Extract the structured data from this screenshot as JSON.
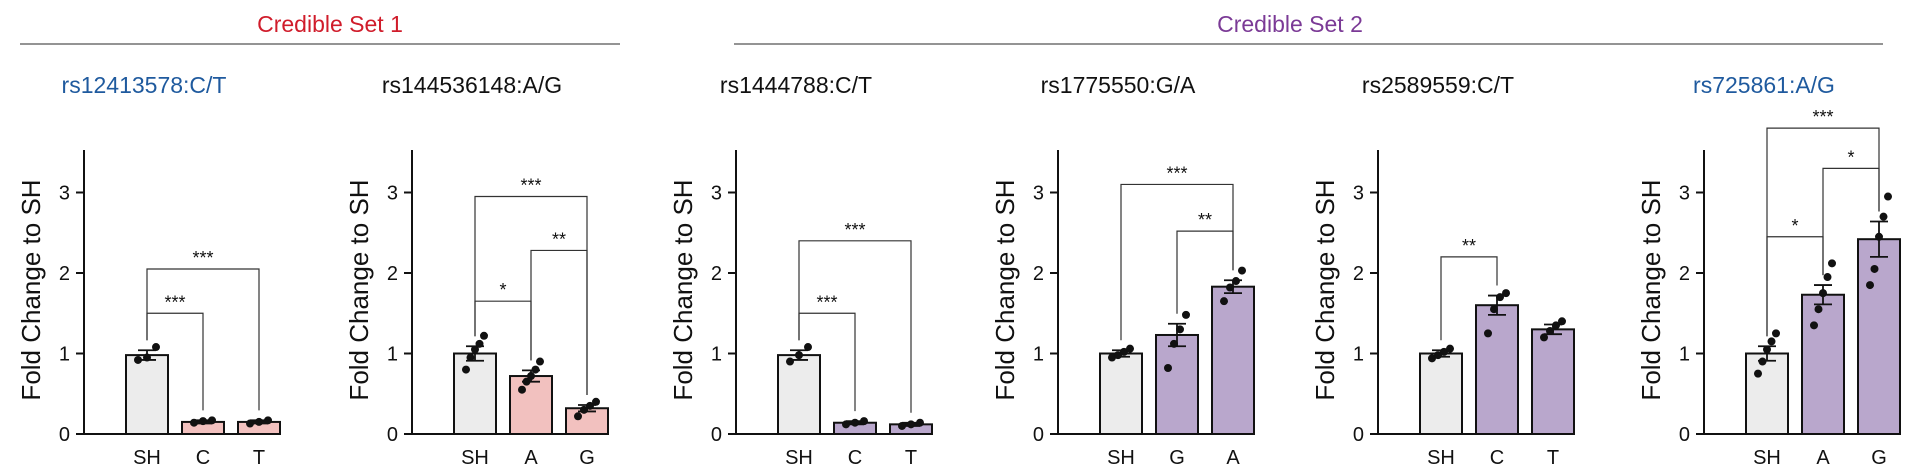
{
  "colors": {
    "set1": "#d01c2b",
    "set2": "#7b3a96",
    "blue_title": "#1f5a9e",
    "black_title": "#111111",
    "sh_fill": "#ececec",
    "set1_fill": "#f2c1bf",
    "set2_fill": "#b9a7cc",
    "axis": "#111111"
  },
  "credible_sets": [
    {
      "label": "Credible Set 1",
      "color_key": "set1",
      "panels": [
        0,
        1
      ]
    },
    {
      "label": "Credible Set 2",
      "color_key": "set2",
      "panels": [
        2,
        3,
        4,
        5
      ]
    }
  ],
  "chart_data": [
    {
      "type": "bar",
      "title": "rs12413578:C/T",
      "title_color_key": "blue_title",
      "ylabel": "Fold Change to SH",
      "ylim": [
        0,
        3.5
      ],
      "yticks": [
        0,
        1,
        2,
        3
      ],
      "categories": [
        "SH",
        "C",
        "T"
      ],
      "fill_keys": [
        "sh_fill",
        "set1_fill",
        "set1_fill"
      ],
      "values": [
        0.98,
        0.15,
        0.15
      ],
      "errors": [
        0.06,
        0.02,
        0.02
      ],
      "points": [
        [
          0.92,
          0.95,
          1.08
        ],
        [
          0.14,
          0.16,
          0.17
        ],
        [
          0.13,
          0.15,
          0.17
        ]
      ],
      "significance": [
        {
          "from": 0,
          "to": 1,
          "label": "***",
          "y": 1.5
        },
        {
          "from": 0,
          "to": 2,
          "label": "***",
          "y": 2.05
        }
      ]
    },
    {
      "type": "bar",
      "title": "rs144536148:A/G",
      "title_color_key": "black_title",
      "ylabel": "Fold Change to SH",
      "ylim": [
        0,
        3.5
      ],
      "yticks": [
        0,
        1,
        2,
        3
      ],
      "categories": [
        "SH",
        "A",
        "G"
      ],
      "fill_keys": [
        "sh_fill",
        "set1_fill",
        "set1_fill"
      ],
      "values": [
        1.0,
        0.72,
        0.32
      ],
      "errors": [
        0.09,
        0.07,
        0.04
      ],
      "points": [
        [
          0.8,
          0.95,
          1.05,
          1.12,
          1.22
        ],
        [
          0.55,
          0.65,
          0.72,
          0.8,
          0.9
        ],
        [
          0.22,
          0.3,
          0.35,
          0.4
        ]
      ],
      "significance": [
        {
          "from": 0,
          "to": 1,
          "label": "*",
          "y": 1.65
        },
        {
          "from": 1,
          "to": 2,
          "label": "**",
          "y": 2.28
        },
        {
          "from": 0,
          "to": 2,
          "label": "***",
          "y": 2.95
        }
      ]
    },
    {
      "type": "bar",
      "title": "rs1444788:C/T",
      "title_color_key": "black_title",
      "ylabel": "Fold Change to SH",
      "ylim": [
        0,
        3.5
      ],
      "yticks": [
        0,
        1,
        2,
        3
      ],
      "categories": [
        "SH",
        "C",
        "T"
      ],
      "fill_keys": [
        "sh_fill",
        "set2_fill",
        "set2_fill"
      ],
      "values": [
        0.98,
        0.14,
        0.12
      ],
      "errors": [
        0.06,
        0.02,
        0.02
      ],
      "points": [
        [
          0.9,
          0.98,
          1.08
        ],
        [
          0.12,
          0.14,
          0.16
        ],
        [
          0.1,
          0.12,
          0.14
        ]
      ],
      "significance": [
        {
          "from": 0,
          "to": 1,
          "label": "***",
          "y": 1.5
        },
        {
          "from": 0,
          "to": 2,
          "label": "***",
          "y": 2.4
        }
      ]
    },
    {
      "type": "bar",
      "title": "rs1775550:G/A",
      "title_color_key": "black_title",
      "ylabel": "Fold Change to SH",
      "ylim": [
        0,
        3.5
      ],
      "yticks": [
        0,
        1,
        2,
        3
      ],
      "categories": [
        "SH",
        "G",
        "A"
      ],
      "fill_keys": [
        "sh_fill",
        "set2_fill",
        "set2_fill"
      ],
      "values": [
        1.0,
        1.23,
        1.83
      ],
      "errors": [
        0.04,
        0.14,
        0.08
      ],
      "points": [
        [
          0.95,
          0.98,
          1.02,
          1.06
        ],
        [
          0.82,
          1.12,
          1.3,
          1.48
        ],
        [
          1.65,
          1.82,
          1.9,
          2.03
        ]
      ],
      "significance": [
        {
          "from": 1,
          "to": 2,
          "label": "**",
          "y": 2.52
        },
        {
          "from": 0,
          "to": 2,
          "label": "***",
          "y": 3.1
        }
      ]
    },
    {
      "type": "bar",
      "title": "rs2589559:C/T",
      "title_color_key": "black_title",
      "ylabel": "Fold Change to SH",
      "ylim": [
        0,
        3.5
      ],
      "yticks": [
        0,
        1,
        2,
        3
      ],
      "categories": [
        "SH",
        "C",
        "T"
      ],
      "fill_keys": [
        "sh_fill",
        "set2_fill",
        "set2_fill"
      ],
      "values": [
        1.0,
        1.6,
        1.3
      ],
      "errors": [
        0.04,
        0.12,
        0.06
      ],
      "points": [
        [
          0.94,
          0.98,
          1.02,
          1.06
        ],
        [
          1.25,
          1.55,
          1.7,
          1.75
        ],
        [
          1.2,
          1.28,
          1.35,
          1.4
        ]
      ],
      "significance": [
        {
          "from": 0,
          "to": 1,
          "label": "**",
          "y": 2.2
        }
      ]
    },
    {
      "type": "bar",
      "title": "rs725861:A/G",
      "title_color_key": "blue_title",
      "ylabel": "Fold Change to SH",
      "ylim": [
        0,
        3.5
      ],
      "yticks": [
        0,
        1,
        2,
        3
      ],
      "categories": [
        "SH",
        "A",
        "G"
      ],
      "fill_keys": [
        "sh_fill",
        "set2_fill",
        "set2_fill"
      ],
      "values": [
        1.0,
        1.73,
        2.42
      ],
      "errors": [
        0.09,
        0.12,
        0.22
      ],
      "points": [
        [
          0.75,
          0.9,
          1.05,
          1.15,
          1.25
        ],
        [
          1.35,
          1.55,
          1.75,
          1.95,
          2.12
        ],
        [
          1.85,
          2.05,
          2.45,
          2.7,
          2.95
        ]
      ],
      "significance": [
        {
          "from": 0,
          "to": 1,
          "label": "*",
          "y": 2.45
        },
        {
          "from": 1,
          "to": 2,
          "label": "*",
          "y": 3.3
        },
        {
          "from": 0,
          "to": 2,
          "label": "***",
          "y": 3.8
        }
      ]
    }
  ]
}
